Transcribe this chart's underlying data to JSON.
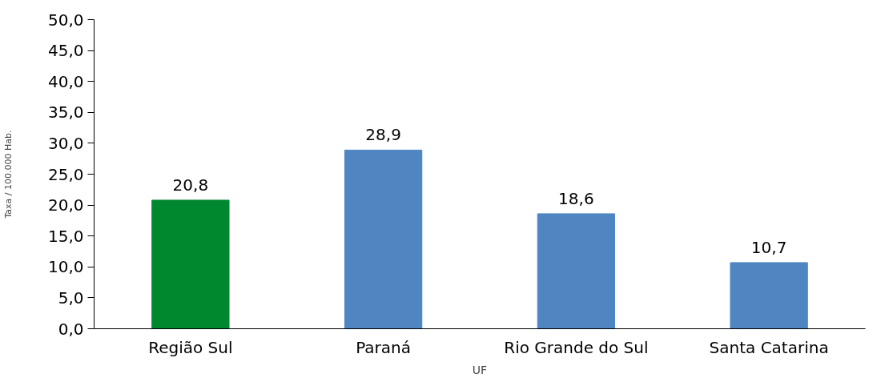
{
  "chart_data": {
    "type": "bar",
    "xlabel": "UF",
    "ylabel": "Taxa / 100.000 Hab.",
    "categories": [
      "Região Sul",
      "Paraná",
      "Rio Grande do Sul",
      "Santa Catarina"
    ],
    "values": [
      20.8,
      28.9,
      18.6,
      10.7
    ],
    "colors": [
      "#00882f",
      "#4f86c1",
      "#4f86c1",
      "#4f86c1"
    ],
    "value_labels": [
      "20,8",
      "28,9",
      "18,6",
      "10,7"
    ],
    "ylim": [
      0,
      50
    ],
    "yticks": [
      {
        "value": 0,
        "label": "0,0"
      },
      {
        "value": 5,
        "label": "5,0"
      },
      {
        "value": 10,
        "label": "10,0"
      },
      {
        "value": 15,
        "label": "15,0"
      },
      {
        "value": 20,
        "label": "20,0"
      },
      {
        "value": 25,
        "label": "25,0"
      },
      {
        "value": 30,
        "label": "30,0"
      },
      {
        "value": 35,
        "label": "35,0"
      },
      {
        "value": 40,
        "label": "40,0"
      },
      {
        "value": 45,
        "label": "45,0"
      },
      {
        "value": 50,
        "label": "50,0"
      }
    ],
    "grid": false
  }
}
